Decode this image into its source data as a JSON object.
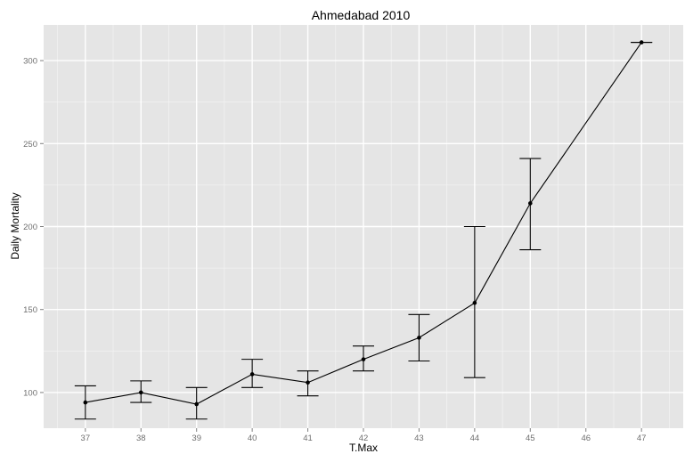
{
  "chart_data": {
    "type": "line",
    "title": "Ahmedabad 2010",
    "xlabel": "T.Max",
    "ylabel": "Daily Mortality",
    "x_ticks": [
      37,
      38,
      39,
      40,
      41,
      42,
      43,
      44,
      45,
      46,
      47
    ],
    "y_ticks": [
      100,
      150,
      200,
      250,
      300
    ],
    "xlim": [
      36.25,
      47.75
    ],
    "ylim": [
      78.5,
      321.5
    ],
    "grid": true,
    "series": [
      {
        "points": [
          {
            "x": 37,
            "y": 94,
            "low": 84,
            "high": 104
          },
          {
            "x": 38,
            "y": 100,
            "low": 94,
            "high": 107
          },
          {
            "x": 39,
            "y": 93,
            "low": 84,
            "high": 103
          },
          {
            "x": 40,
            "y": 111,
            "low": 103,
            "high": 120
          },
          {
            "x": 41,
            "y": 106,
            "low": 98,
            "high": 113
          },
          {
            "x": 42,
            "y": 120,
            "low": 113,
            "high": 128
          },
          {
            "x": 43,
            "y": 133,
            "low": 119,
            "high": 147
          },
          {
            "x": 44,
            "y": 154,
            "low": 109,
            "high": 200
          },
          {
            "x": 45,
            "y": 214,
            "low": 186,
            "high": 241
          },
          {
            "x": 47,
            "y": 311,
            "low": 311,
            "high": 311
          }
        ]
      }
    ]
  },
  "colors": {
    "panel_background": "#e5e5e5",
    "grid_major": "#ffffff",
    "grid_minor": "#f2f2f2",
    "line": "#000000",
    "tick_label": "#6f6f6f"
  }
}
